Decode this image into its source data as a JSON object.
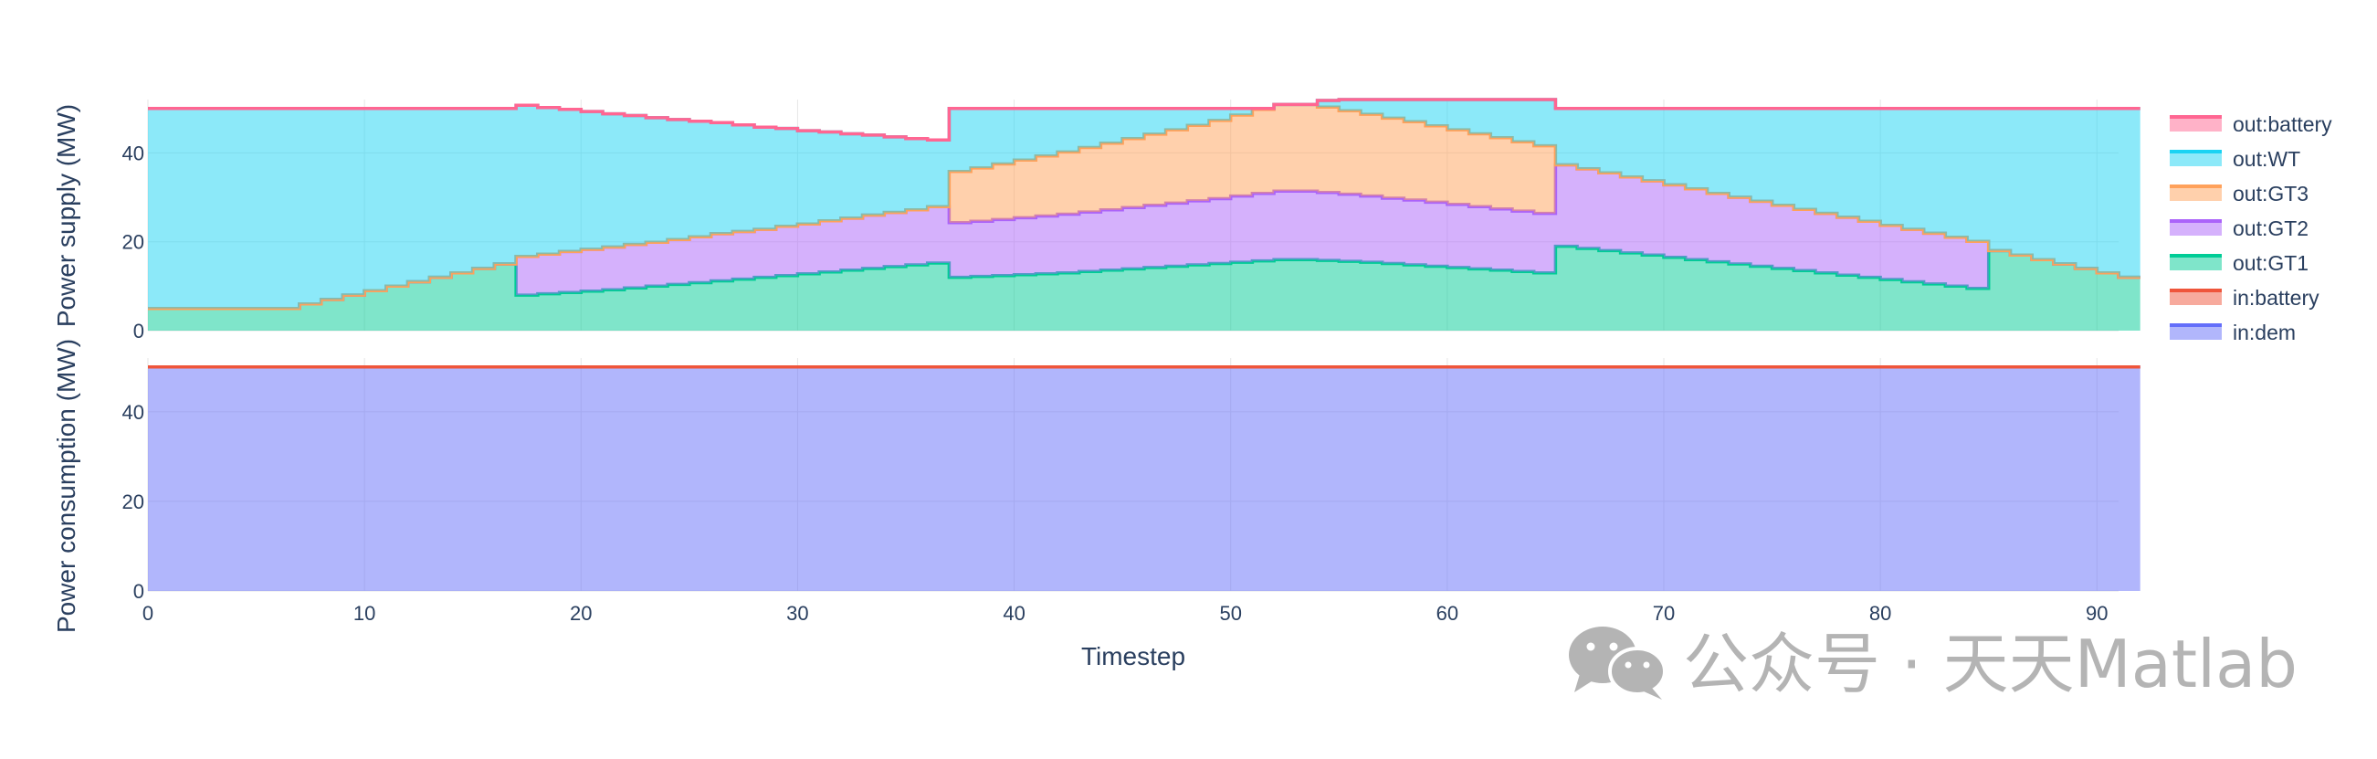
{
  "chart_data": [
    {
      "type": "area",
      "ylabel": "Power supply (MW)",
      "xlim": [
        0,
        91
      ],
      "ylim": [
        0,
        52
      ],
      "y_ticks": [
        0,
        20,
        40
      ],
      "grid": true,
      "stacked": true,
      "series": [
        {
          "name": "out:GT1",
          "color": "#00cc96",
          "values": [
            5,
            5,
            5,
            5,
            5,
            5,
            5,
            6,
            7,
            8,
            9,
            10,
            11,
            12,
            13,
            14,
            15,
            8,
            8.3,
            8.6,
            8.9,
            9.2,
            9.6,
            10,
            10.4,
            10.8,
            11.2,
            11.6,
            12,
            12.4,
            12.8,
            13.2,
            13.6,
            14,
            14.4,
            14.8,
            15.2,
            12,
            12.2,
            12.4,
            12.6,
            12.8,
            13,
            13.3,
            13.6,
            13.9,
            14.2,
            14.5,
            14.8,
            15.1,
            15.4,
            15.7,
            16,
            16,
            15.8,
            15.6,
            15.4,
            15.1,
            14.8,
            14.5,
            14.2,
            13.9,
            13.6,
            13.3,
            13,
            19,
            18.5,
            18,
            17.5,
            17,
            16.5,
            16,
            15.5,
            15,
            14.5,
            14,
            13.5,
            13,
            12.5,
            12,
            11.5,
            11,
            10.5,
            10,
            9.5,
            18,
            17,
            16,
            15,
            14,
            13,
            12
          ]
        },
        {
          "name": "out:GT2",
          "color": "#ab63fa",
          "values": [
            0,
            0,
            0,
            0,
            0,
            0,
            0,
            0,
            0,
            0,
            0,
            0,
            0,
            0,
            0,
            0,
            0,
            8.7,
            8.9,
            9.2,
            9.4,
            9.6,
            9.8,
            9.9,
            10.1,
            10.3,
            10.6,
            10.7,
            10.8,
            11.1,
            11.2,
            11.5,
            11.7,
            12,
            12.2,
            12.4,
            12.7,
            12.3,
            12.4,
            12.6,
            12.8,
            13,
            13.2,
            13.4,
            13.6,
            13.8,
            14,
            14.2,
            14.4,
            14.6,
            14.9,
            15.2,
            15.4,
            15.4,
            15.3,
            15.1,
            14.9,
            14.7,
            14.6,
            14.4,
            14.2,
            14,
            13.8,
            13.6,
            13.4,
            18.3,
            17.9,
            17.5,
            17.1,
            16.7,
            16.3,
            15.9,
            15.4,
            15,
            14.6,
            14.2,
            13.8,
            13.4,
            13,
            12.6,
            12.2,
            11.8,
            11.4,
            11,
            10.6,
            0,
            0,
            0,
            0,
            0,
            0,
            0
          ]
        },
        {
          "name": "out:GT3",
          "color": "#ffa15a",
          "values": [
            0,
            0,
            0,
            0,
            0,
            0,
            0,
            0,
            0,
            0,
            0,
            0,
            0,
            0,
            0,
            0,
            0,
            0,
            0,
            0,
            0,
            0,
            0,
            0,
            0,
            0,
            0,
            0,
            0,
            0,
            0,
            0,
            0,
            0,
            0,
            0,
            0,
            11.5,
            12,
            12.5,
            13,
            13.5,
            14,
            14.5,
            15,
            15.5,
            16,
            16.5,
            17,
            17.6,
            18.2,
            18.9,
            19.5,
            19.5,
            19.2,
            18.8,
            18.4,
            18,
            17.6,
            17.2,
            16.8,
            16.4,
            16,
            15.6,
            15.2,
            0,
            0,
            0,
            0,
            0,
            0,
            0,
            0,
            0,
            0,
            0,
            0,
            0,
            0,
            0,
            0,
            0,
            0,
            0,
            0,
            0,
            0,
            0,
            0,
            0,
            0,
            0
          ]
        },
        {
          "name": "out:WT",
          "color": "#19d3f3",
          "values": [
            45,
            45,
            45,
            45,
            45,
            45,
            45,
            44,
            43,
            42,
            41,
            40,
            39,
            38,
            37,
            36,
            35,
            34,
            33,
            32,
            31,
            30,
            29,
            28,
            27,
            26,
            25,
            24,
            23,
            22,
            21,
            20,
            19,
            18,
            17,
            16,
            15,
            14.2,
            13.4,
            12.5,
            11.6,
            10.7,
            9.8,
            8.8,
            7.8,
            6.8,
            5.8,
            4.8,
            3.8,
            2.7,
            1.5,
            0.2,
            0,
            0,
            1.5,
            2.5,
            3.3,
            4.2,
            5,
            5.9,
            6.8,
            7.7,
            8.6,
            9.5,
            10.4,
            12.7,
            13.6,
            14.5,
            15.4,
            16.3,
            17.2,
            18.1,
            19.1,
            20,
            20.9,
            21.8,
            22.7,
            23.6,
            24.5,
            25.4,
            26.3,
            27.2,
            28.1,
            29,
            29.9,
            32,
            33,
            34,
            35,
            36,
            37,
            38
          ]
        },
        {
          "name": "out:battery",
          "color": "#ff6692",
          "values": [
            0,
            0,
            0,
            0,
            0,
            0,
            0,
            0,
            0,
            0,
            0,
            0,
            0,
            0,
            0,
            0,
            0,
            0,
            0,
            0,
            0,
            0,
            0,
            0,
            0,
            0,
            0,
            0,
            0,
            0,
            0,
            0,
            0,
            0,
            0,
            0,
            0,
            0,
            0,
            0,
            0,
            0,
            0,
            0,
            0,
            0,
            0,
            0,
            0,
            0,
            0,
            0,
            0,
            0,
            0,
            0,
            0,
            0,
            0,
            0,
            0,
            0,
            0,
            0,
            0,
            0,
            0,
            0,
            0,
            0,
            0,
            0,
            0,
            0,
            0,
            0,
            0,
            0,
            0,
            0,
            0,
            0,
            0,
            0,
            0,
            0,
            0,
            0,
            0,
            0,
            0,
            0
          ]
        }
      ]
    },
    {
      "type": "area",
      "ylabel": "Power consumption (MW)",
      "xlabel": "Timestep",
      "xlim": [
        0,
        91
      ],
      "ylim": [
        0,
        52
      ],
      "y_ticks": [
        0,
        20,
        40
      ],
      "x_ticks": [
        0,
        10,
        20,
        30,
        40,
        50,
        60,
        70,
        80,
        90
      ],
      "grid": true,
      "stacked": true,
      "series": [
        {
          "name": "in:dem",
          "color": "#636efa",
          "values": [
            50,
            50,
            50,
            50,
            50,
            50,
            50,
            50,
            50,
            50,
            50,
            50,
            50,
            50,
            50,
            50,
            50,
            50,
            50,
            50,
            50,
            50,
            50,
            50,
            50,
            50,
            50,
            50,
            50,
            50,
            50,
            50,
            50,
            50,
            50,
            50,
            50,
            50,
            50,
            50,
            50,
            50,
            50,
            50,
            50,
            50,
            50,
            50,
            50,
            50,
            50,
            50,
            50,
            50,
            50,
            50,
            50,
            50,
            50,
            50,
            50,
            50,
            50,
            50,
            50,
            50,
            50,
            50,
            50,
            50,
            50,
            50,
            50,
            50,
            50,
            50,
            50,
            50,
            50,
            50,
            50,
            50,
            50,
            50,
            50,
            50,
            50,
            50,
            50,
            50,
            50,
            50
          ]
        },
        {
          "name": "in:battery",
          "color": "#ef553b",
          "values": [
            0,
            0,
            0,
            0,
            0,
            0,
            0,
            0,
            0,
            0,
            0,
            0,
            0,
            0,
            0,
            0,
            0,
            0,
            0,
            0,
            0,
            0,
            0,
            0,
            0,
            0,
            0,
            0,
            0,
            0,
            0,
            0,
            0,
            0,
            0,
            0,
            0,
            0,
            0,
            0,
            0,
            0,
            0,
            0,
            0,
            0,
            0,
            0,
            0,
            0,
            0,
            0,
            0,
            0,
            0,
            0,
            0,
            0,
            0,
            0,
            0,
            0,
            0,
            0,
            0,
            0,
            0,
            0,
            0,
            0,
            0,
            0,
            0,
            0,
            0,
            0,
            0,
            0,
            0,
            0,
            0,
            0,
            0,
            0,
            0,
            0,
            0,
            0,
            0,
            0,
            0,
            0
          ]
        }
      ]
    }
  ],
  "legend": {
    "placement": "right",
    "items": [
      {
        "label": "out:battery",
        "color": "#ff6692"
      },
      {
        "label": "out:WT",
        "color": "#19d3f3"
      },
      {
        "label": "out:GT3",
        "color": "#ffa15a"
      },
      {
        "label": "out:GT2",
        "color": "#ab63fa"
      },
      {
        "label": "out:GT1",
        "color": "#00cc96"
      },
      {
        "label": "in:battery",
        "color": "#ef553b"
      },
      {
        "label": "in:dem",
        "color": "#636efa"
      }
    ]
  },
  "watermark": {
    "icon": "wechat-icon",
    "text": "公众号 · 天天Matlab"
  }
}
